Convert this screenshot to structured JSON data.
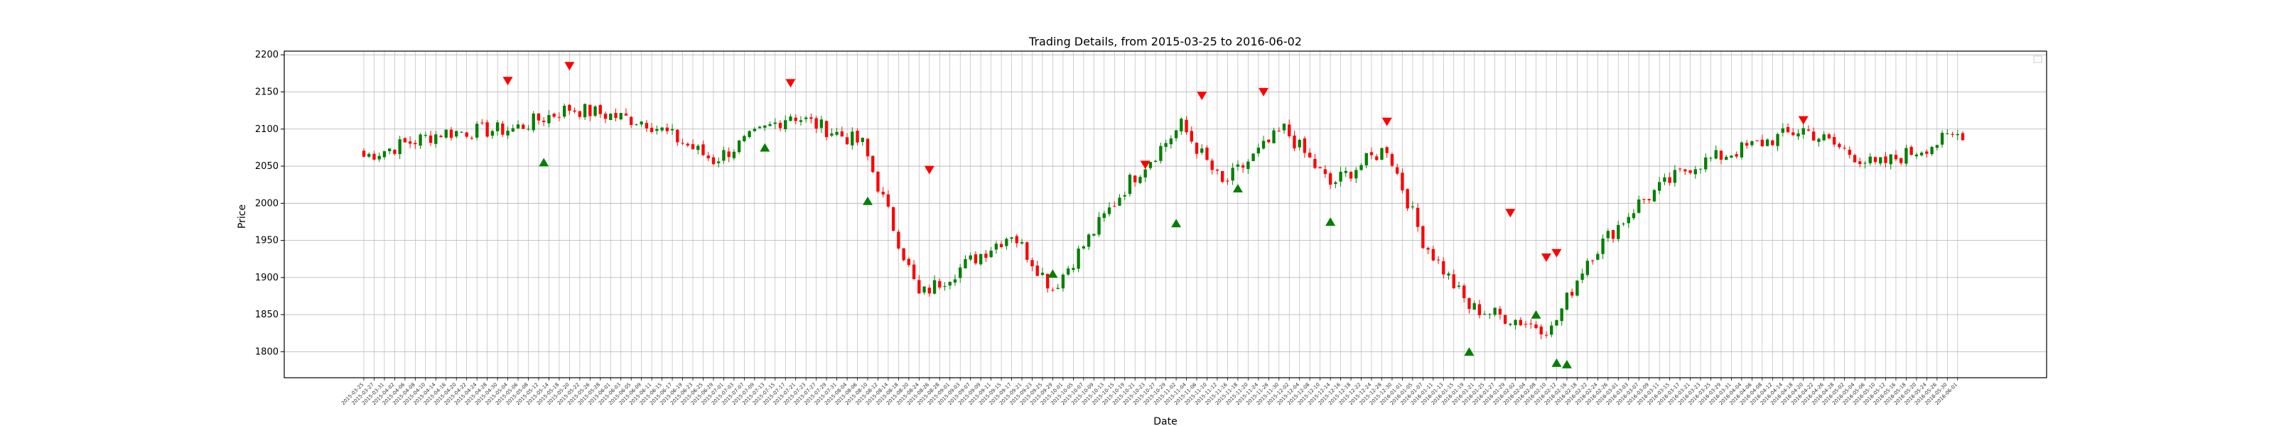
{
  "chart_data": {
    "type": "candlestick",
    "title": "Trading Details, from 2015-03-25 to 2016-06-02",
    "xlabel": "Date",
    "ylabel": "Price",
    "x_range": [
      "2015-03-25",
      "2016-06-02"
    ],
    "ylim": [
      1765,
      2205
    ],
    "yticks": [
      1800,
      1850,
      1900,
      1950,
      2000,
      2050,
      2100,
      2150,
      2200
    ],
    "grid": true,
    "legend": "top-right",
    "colors": {
      "up": "#008000",
      "down": "#ff0000",
      "buy_marker": "#008000",
      "sell_marker": "#ff0000",
      "grid": "#b0b0b0"
    },
    "anchors": [
      [
        "2015-03-25",
        2063
      ],
      [
        "2015-04-15",
        2095
      ],
      [
        "2015-05-05",
        2100
      ],
      [
        "2015-05-20",
        2128
      ],
      [
        "2015-06-10",
        2110
      ],
      [
        "2015-06-29",
        2058
      ],
      [
        "2015-07-20",
        2120
      ],
      [
        "2015-08-07",
        2080
      ],
      [
        "2015-08-24",
        1875
      ],
      [
        "2015-09-17",
        1960
      ],
      [
        "2015-09-29",
        1885
      ],
      [
        "2015-10-20",
        2030
      ],
      [
        "2015-11-03",
        2105
      ],
      [
        "2015-11-13",
        2025
      ],
      [
        "2015-12-01",
        2100
      ],
      [
        "2015-12-14",
        2025
      ],
      [
        "2015-12-29",
        2075
      ],
      [
        "2016-01-07",
        1950
      ],
      [
        "2016-01-20",
        1860
      ],
      [
        "2016-02-11",
        1830
      ],
      [
        "2016-02-22",
        1925
      ],
      [
        "2016-03-07",
        2000
      ],
      [
        "2016-03-21",
        2050
      ],
      [
        "2016-04-20",
        2100
      ],
      [
        "2016-05-10",
        2050
      ],
      [
        "2016-06-02",
        2095
      ]
    ],
    "sell_signals": [
      [
        "2015-05-04",
        2165
      ],
      [
        "2015-05-20",
        2185
      ],
      [
        "2015-07-20",
        2162
      ],
      [
        "2015-08-26",
        2045
      ],
      [
        "2015-10-23",
        2052
      ],
      [
        "2015-11-09",
        2145
      ],
      [
        "2015-11-25",
        2150
      ],
      [
        "2015-12-29",
        2110
      ],
      [
        "2016-02-01",
        1987
      ],
      [
        "2016-02-10",
        1927
      ],
      [
        "2016-02-12",
        1933
      ],
      [
        "2016-04-20",
        2112
      ]
    ],
    "buy_signals": [
      [
        "2015-05-13",
        2055
      ],
      [
        "2015-07-13",
        2075
      ],
      [
        "2015-08-10",
        2003
      ],
      [
        "2015-09-29",
        1905
      ],
      [
        "2015-11-02",
        1973
      ],
      [
        "2015-11-18",
        2020
      ],
      [
        "2015-12-14",
        1975
      ],
      [
        "2016-01-20",
        1800
      ],
      [
        "2016-02-08",
        1850
      ],
      [
        "2016-02-12",
        1785
      ],
      [
        "2016-02-16",
        1783
      ]
    ]
  }
}
